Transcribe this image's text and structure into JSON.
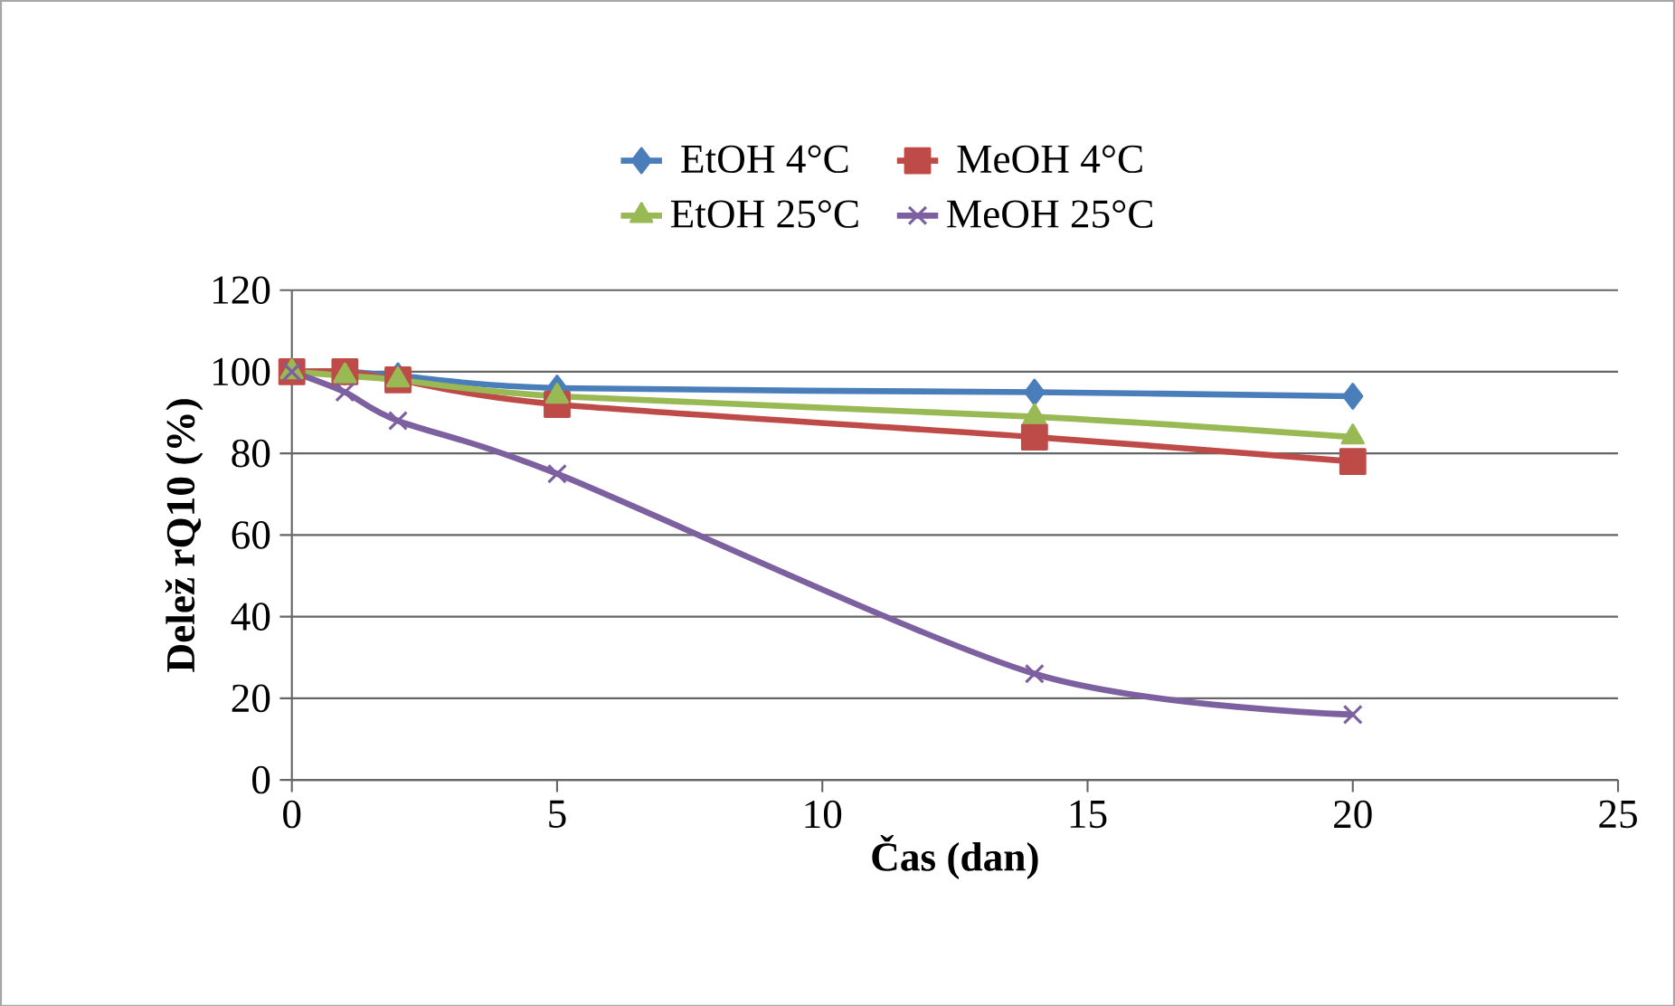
{
  "chart_data": {
    "type": "line",
    "xlabel": "Čas (dan)",
    "ylabel": "Delež rQ10 (%)",
    "x": [
      0,
      1,
      2,
      5,
      14,
      20
    ],
    "series": [
      {
        "name": "EtOH 4°C",
        "color": "#4a7ebb",
        "marker": "diamond",
        "values": [
          100,
          100,
          99,
          96,
          95,
          94
        ]
      },
      {
        "name": "MeOH 4°C",
        "color": "#be4b48",
        "marker": "square",
        "values": [
          100,
          100,
          98,
          92,
          84,
          78
        ]
      },
      {
        "name": "EtOH 25°C",
        "color": "#98b954",
        "marker": "triangle",
        "values": [
          100,
          99,
          98,
          94,
          89,
          84
        ]
      },
      {
        "name": "MeOH 25°C",
        "color": "#7d60a0",
        "marker": "cross",
        "values": [
          100,
          95,
          88,
          75,
          26,
          16
        ]
      }
    ],
    "xlim": [
      0,
      25
    ],
    "ylim": [
      0,
      120
    ],
    "xticks": [
      0,
      5,
      10,
      15,
      20,
      25
    ],
    "yticks": [
      0,
      20,
      40,
      60,
      80,
      100,
      120
    ],
    "grid": "y",
    "legend": "top",
    "line_style": "solid"
  }
}
